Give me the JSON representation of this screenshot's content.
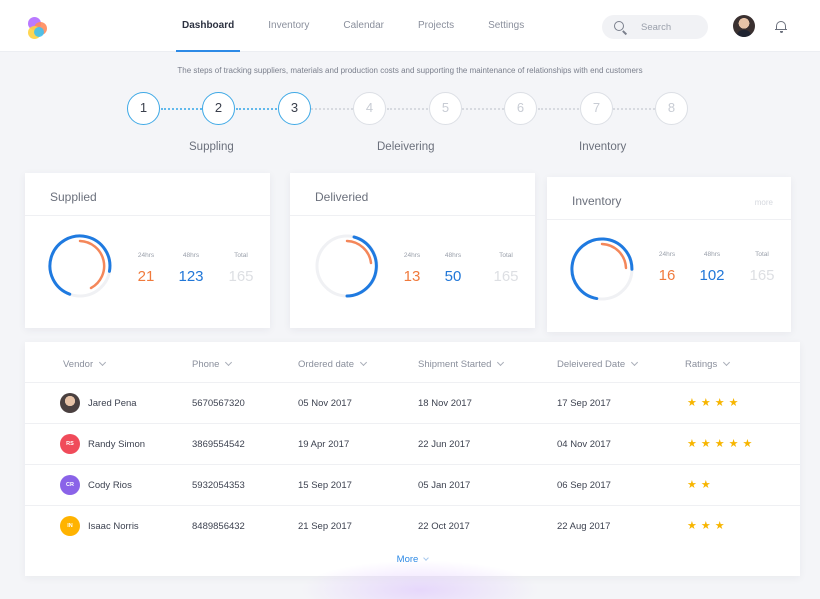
{
  "nav": {
    "items": [
      {
        "label": "Dashboard",
        "active": true
      },
      {
        "label": "Inventory"
      },
      {
        "label": "Calendar"
      },
      {
        "label": "Projects"
      },
      {
        "label": "Settings"
      }
    ]
  },
  "search": {
    "placeholder": "Search"
  },
  "stepper": {
    "description": "The steps of tracking suppliers, materials and production costs and supporting the maintenance of relationships with end customers",
    "steps": [
      "1",
      "2",
      "3",
      "4",
      "5",
      "6",
      "7",
      "8"
    ],
    "completed_steps": 3,
    "phases": [
      "Suppling",
      "Deleivering",
      "Inventory"
    ]
  },
  "cards": [
    {
      "title": "Supplied",
      "more": "",
      "stats": [
        {
          "label": "24hrs",
          "value": "21"
        },
        {
          "label": "48hrs",
          "value": "123"
        },
        {
          "label": "Total",
          "value": "165"
        }
      ]
    },
    {
      "title": "Deliveried",
      "more": "",
      "stats": [
        {
          "label": "24hrs",
          "value": "13"
        },
        {
          "label": "48hrs",
          "value": "50"
        },
        {
          "label": "Total",
          "value": "165"
        }
      ]
    },
    {
      "title": "Inventory",
      "more": "more",
      "stats": [
        {
          "label": "24hrs",
          "value": "16"
        },
        {
          "label": "48hrs",
          "value": "102"
        },
        {
          "label": "Total",
          "value": "165"
        }
      ]
    }
  ],
  "table": {
    "columns": [
      "Vendor",
      "Phone",
      "Ordered date",
      "Shipment Started",
      "Deleivered Date",
      "Ratings"
    ],
    "rows": [
      {
        "initials": "",
        "name": "Jared Pena",
        "phone": "5670567320",
        "ordered": "05 Nov 2017",
        "shipped": "18 Nov 2017",
        "delivered": "17 Sep 2017",
        "rating": 4,
        "avatar_color": ""
      },
      {
        "initials": "RS",
        "name": "Randy Simon",
        "phone": "3869554542",
        "ordered": "19 Apr 2017",
        "shipped": "22 Jun 2017",
        "delivered": "04 Nov 2017",
        "rating": 5,
        "avatar_color": "#f04b5a"
      },
      {
        "initials": "CR",
        "name": "Cody Rios",
        "phone": "5932054353",
        "ordered": "15 Sep 2017",
        "shipped": "05 Jan 2017",
        "delivered": "06 Sep 2017",
        "rating": 2,
        "avatar_color": "#8a63e8"
      },
      {
        "initials": "IN",
        "name": "Isaac Norris",
        "phone": "8489856432",
        "ordered": "21 Sep 2017",
        "shipped": "22 Oct 2017",
        "delivered": "22 Aug 2017",
        "rating": 3,
        "avatar_color": "#ffb300"
      }
    ],
    "more_label": "More"
  },
  "colors": {
    "accent": "#2d8ae6",
    "orange": "#f07a3c",
    "blue": "#2177d8",
    "star": "#f7b500"
  }
}
